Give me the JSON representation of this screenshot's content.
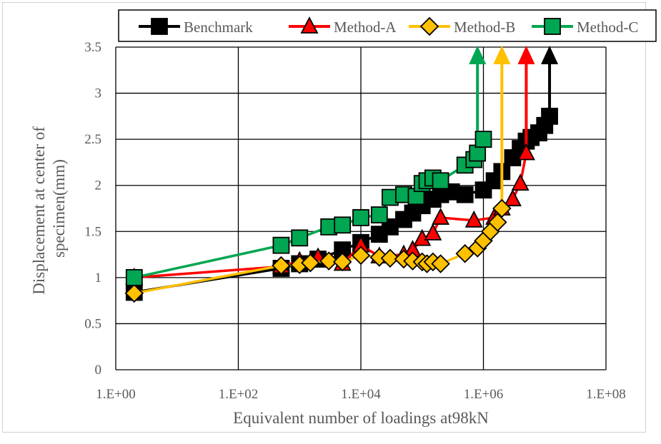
{
  "chart_data": {
    "type": "line",
    "x_scale": "log",
    "xlabel": "Equivalent number of loadings at98kN",
    "ylabel_lines": [
      "Displacement at center of",
      "specimen(mm)"
    ],
    "xlim": [
      1,
      100000000
    ],
    "ylim": [
      0,
      3.5
    ],
    "x_ticks": [
      {
        "value": 1,
        "label": "1.E+00"
      },
      {
        "value": 100,
        "label": "1.E+02"
      },
      {
        "value": 10000,
        "label": "1.E+04"
      },
      {
        "value": 1000000,
        "label": "1.E+06"
      },
      {
        "value": 100000000,
        "label": "1.E+08"
      }
    ],
    "y_ticks": [
      {
        "value": 0,
        "label": "0"
      },
      {
        "value": 0.5,
        "label": "0.5"
      },
      {
        "value": 1,
        "label": "1"
      },
      {
        "value": 1.5,
        "label": "1.5"
      },
      {
        "value": 2,
        "label": "2"
      },
      {
        "value": 2.5,
        "label": "2.5"
      },
      {
        "value": 3,
        "label": "3"
      },
      {
        "value": 3.5,
        "label": "3.5"
      }
    ],
    "grid": true,
    "legend_position": "top",
    "series": [
      {
        "name": "Benchmark",
        "color": "#000000",
        "marker": "square",
        "x": [
          2,
          500,
          1000,
          2000,
          5000,
          10000,
          20000,
          30000,
          50000,
          70000,
          100000,
          150000,
          200000,
          300000,
          500000,
          1000000,
          1500000,
          2000000,
          3000000,
          4000000,
          5000000,
          6000000,
          8000000,
          10000000,
          12000000
        ],
        "y": [
          0.84,
          1.1,
          1.15,
          1.2,
          1.3,
          1.38,
          1.47,
          1.55,
          1.63,
          1.7,
          1.78,
          1.85,
          1.9,
          1.93,
          1.9,
          1.95,
          2.05,
          2.15,
          2.3,
          2.4,
          2.48,
          2.52,
          2.57,
          2.65,
          2.75
        ],
        "failure_arrow_x": 12000000
      },
      {
        "name": "Method-A",
        "color": "#ff0000",
        "marker": "triangle",
        "x": [
          2,
          500,
          1000,
          2000,
          5000,
          10000,
          20000,
          50000,
          70000,
          100000,
          150000,
          200000,
          700000,
          1500000,
          2000000,
          3000000,
          4000000,
          5000000
        ],
        "y": [
          1.0,
          1.12,
          1.18,
          1.22,
          1.15,
          1.35,
          1.23,
          1.25,
          1.3,
          1.42,
          1.48,
          1.65,
          1.62,
          1.65,
          1.75,
          1.85,
          2.02,
          2.35
        ],
        "failure_arrow_x": 5000000
      },
      {
        "name": "Method-B",
        "color": "#ffc000",
        "marker": "diamond",
        "x": [
          2,
          500,
          1000,
          1500,
          3000,
          5000,
          10000,
          20000,
          30000,
          50000,
          70000,
          100000,
          120000,
          150000,
          200000,
          500000,
          800000,
          1000000,
          1300000,
          1700000,
          2000000
        ],
        "y": [
          0.83,
          1.13,
          1.14,
          1.16,
          1.18,
          1.17,
          1.24,
          1.22,
          1.21,
          1.2,
          1.18,
          1.17,
          1.15,
          1.17,
          1.15,
          1.26,
          1.32,
          1.4,
          1.5,
          1.6,
          1.75
        ],
        "failure_arrow_x": 2000000
      },
      {
        "name": "Method-C",
        "color": "#00a651",
        "marker": "square",
        "x": [
          2,
          500,
          1000,
          3000,
          5000,
          10000,
          20000,
          30000,
          50000,
          80000,
          100000,
          120000,
          150000,
          200000,
          500000,
          700000,
          800000,
          1000000
        ],
        "y": [
          1.0,
          1.35,
          1.43,
          1.55,
          1.57,
          1.65,
          1.68,
          1.87,
          1.9,
          1.88,
          2.02,
          2.05,
          2.08,
          2.05,
          2.22,
          2.28,
          2.35,
          2.5
        ],
        "failure_arrow_x": 800000
      }
    ]
  }
}
